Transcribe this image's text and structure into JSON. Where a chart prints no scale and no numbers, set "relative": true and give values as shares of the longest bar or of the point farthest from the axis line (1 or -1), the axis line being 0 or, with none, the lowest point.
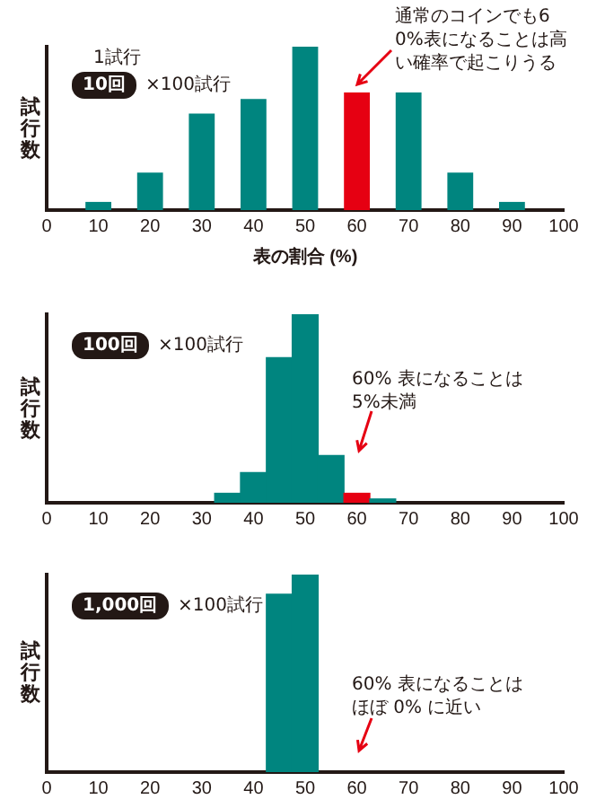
{
  "chart_data": [
    {
      "type": "bar",
      "xlabel": "表の割合 (%)",
      "ylabel": "試行数",
      "relative": true,
      "x": [
        10,
        20,
        30,
        40,
        50,
        60,
        70,
        80,
        90
      ],
      "values": [
        0.05,
        0.23,
        0.59,
        0.68,
        1,
        0.72,
        0.72,
        0.23,
        0.05
      ],
      "colors": [
        "#00857f",
        "#00857f",
        "#00857f",
        "#00857f",
        "#00857f",
        "#e60012",
        "#00857f",
        "#00857f",
        "#00857f"
      ],
      "xlim": [
        0,
        100
      ],
      "xticks": [
        0,
        10,
        20,
        30,
        40,
        50,
        60,
        70,
        80,
        90,
        100
      ],
      "grid": false,
      "legend": false,
      "annotations": [
        "10回",
        "×100試行",
        "1試行",
        "通常のコインでも60%表になることは高い確率で起こりうる"
      ]
    },
    {
      "type": "bar",
      "ylabel": "試行数",
      "relative": true,
      "x": [
        35,
        40,
        45,
        50,
        55,
        60,
        65
      ],
      "values": [
        0.05,
        0.16,
        0.77,
        1,
        0.25,
        0.05,
        0.02
      ],
      "colors": [
        "#00857f",
        "#00857f",
        "#00857f",
        "#00857f",
        "#00857f",
        "#e60012",
        "#00857f"
      ],
      "xlim": [
        0,
        100
      ],
      "xticks": [
        0,
        10,
        20,
        30,
        40,
        50,
        60,
        70,
        80,
        90,
        100
      ],
      "grid": false,
      "legend": false,
      "annotations": [
        "100回",
        "×100試行",
        "60% 表になることは5%未満"
      ]
    },
    {
      "type": "bar",
      "ylabel": "試行数",
      "relative": true,
      "x": [
        45,
        50
      ],
      "values": [
        0.9,
        1
      ],
      "color": "#00857f",
      "xlim": [
        0,
        100
      ],
      "xticks": [
        0,
        10,
        20,
        30,
        40,
        50,
        60,
        70,
        80,
        90,
        100
      ],
      "grid": false,
      "legend": false,
      "annotations": [
        "1,000回",
        "×100試行",
        "60% 表になることはほぼ 0% に近い"
      ]
    }
  ]
}
